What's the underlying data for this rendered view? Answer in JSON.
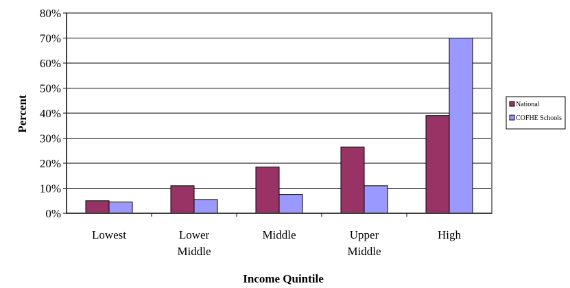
{
  "chart_data": {
    "type": "bar",
    "xlabel": "Income Quintile",
    "ylabel": "Percent",
    "ylim": [
      0,
      80
    ],
    "ytick_step": 10,
    "ytick_suffix": "%",
    "categories": [
      [
        "Lowest"
      ],
      [
        "Lower",
        "Middle"
      ],
      [
        "Middle"
      ],
      [
        "Upper",
        "Middle"
      ],
      [
        "High"
      ]
    ],
    "series": [
      {
        "name": "National",
        "color": "#993366",
        "values": [
          5,
          11,
          18.5,
          26.5,
          39
        ]
      },
      {
        "name": "COFHE Schools",
        "color": "#9999ff",
        "values": [
          4.5,
          5.5,
          7.5,
          11,
          70
        ]
      }
    ],
    "grid": true,
    "legend_position": "right"
  }
}
